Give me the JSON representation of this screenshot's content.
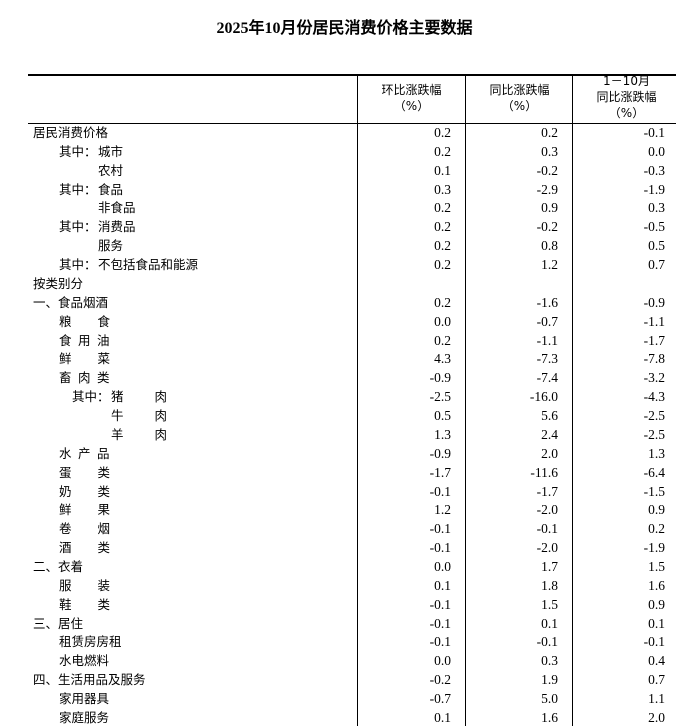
{
  "title": "2025年10月份居民消费价格主要数据",
  "headers": [
    {
      "lines": [
        "环比涨跌幅",
        "（%）"
      ]
    },
    {
      "lines": [
        "同比涨跌幅",
        "（%）"
      ]
    },
    {
      "lines": [
        "1－10月",
        "同比涨跌幅",
        "（%）"
      ]
    }
  ],
  "rows": [
    {
      "kind": "top",
      "label": "居民消费价格",
      "values": [
        "0.2",
        "0.2",
        "-0.1"
      ]
    },
    {
      "kind": "sub",
      "prefix": "其中：",
      "label": "城市",
      "values": [
        "0.2",
        "0.3",
        "0.0"
      ]
    },
    {
      "kind": "sub2",
      "label": "农村",
      "values": [
        "0.1",
        "-0.2",
        "-0.3"
      ]
    },
    {
      "kind": "sub",
      "prefix": "其中：",
      "label": "食品",
      "values": [
        "0.3",
        "-2.9",
        "-1.9"
      ]
    },
    {
      "kind": "sub2",
      "label": "非食品",
      "values": [
        "0.2",
        "0.9",
        "0.3"
      ]
    },
    {
      "kind": "sub",
      "prefix": "其中：",
      "label": "消费品",
      "values": [
        "0.2",
        "-0.2",
        "-0.5"
      ]
    },
    {
      "kind": "sub2",
      "label": "服务",
      "values": [
        "0.2",
        "0.8",
        "0.5"
      ]
    },
    {
      "kind": "sub",
      "prefix": "其中：",
      "label": "不包括食品和能源",
      "values": [
        "0.2",
        "1.2",
        "0.7"
      ]
    },
    {
      "kind": "top",
      "label": "按类别分",
      "values": []
    },
    {
      "kind": "top",
      "label": "一、食品烟酒",
      "values": [
        "0.2",
        "-1.6",
        "-0.9"
      ]
    },
    {
      "kind": "item",
      "label": "粮食",
      "values": [
        "0.0",
        "-0.7",
        "-1.1"
      ]
    },
    {
      "kind": "item",
      "label": "食用油",
      "values": [
        "0.2",
        "-1.1",
        "-1.7"
      ]
    },
    {
      "kind": "item",
      "label": "鲜菜",
      "values": [
        "4.3",
        "-7.3",
        "-7.8"
      ]
    },
    {
      "kind": "item",
      "label": "畜肉类",
      "values": [
        "-0.9",
        "-7.4",
        "-3.2"
      ]
    },
    {
      "kind": "meat",
      "prefix": "其中：",
      "label": "猪肉",
      "values": [
        "-2.5",
        "-16.0",
        "-4.3"
      ]
    },
    {
      "kind": "meat",
      "label": "牛肉",
      "values": [
        "0.5",
        "5.6",
        "-2.5"
      ]
    },
    {
      "kind": "meat",
      "label": "羊肉",
      "values": [
        "1.3",
        "2.4",
        "-2.5"
      ]
    },
    {
      "kind": "item",
      "label": "水产品",
      "values": [
        "-0.9",
        "2.0",
        "1.3"
      ]
    },
    {
      "kind": "item",
      "label": "蛋类",
      "values": [
        "-1.7",
        "-11.6",
        "-6.4"
      ]
    },
    {
      "kind": "item",
      "label": "奶类",
      "values": [
        "-0.1",
        "-1.7",
        "-1.5"
      ]
    },
    {
      "kind": "item",
      "label": "鲜果",
      "values": [
        "1.2",
        "-2.0",
        "0.9"
      ]
    },
    {
      "kind": "item",
      "label": "卷烟",
      "values": [
        "-0.1",
        "-0.1",
        "0.2"
      ]
    },
    {
      "kind": "item",
      "label": "酒类",
      "values": [
        "-0.1",
        "-2.0",
        "-1.9"
      ]
    },
    {
      "kind": "top",
      "label": "二、衣着",
      "values": [
        "0.0",
        "1.7",
        "1.5"
      ]
    },
    {
      "kind": "item",
      "label": "服装",
      "values": [
        "0.1",
        "1.8",
        "1.6"
      ]
    },
    {
      "kind": "item",
      "label": "鞋类",
      "values": [
        "-0.1",
        "1.5",
        "0.9"
      ]
    },
    {
      "kind": "top",
      "label": "三、居住",
      "values": [
        "-0.1",
        "0.1",
        "0.1"
      ]
    },
    {
      "kind": "plain",
      "label": "租赁房房租",
      "values": [
        "-0.1",
        "-0.1",
        "-0.1"
      ]
    },
    {
      "kind": "plain",
      "label": "水电燃料",
      "values": [
        "0.0",
        "0.3",
        "0.4"
      ]
    },
    {
      "kind": "top",
      "label": "四、生活用品及服务",
      "values": [
        "-0.2",
        "1.9",
        "0.7"
      ]
    },
    {
      "kind": "plain",
      "label": "家用器具",
      "values": [
        "-0.7",
        "5.0",
        "1.1"
      ]
    },
    {
      "kind": "plain",
      "label": "家庭服务",
      "values": [
        "0.1",
        "1.6",
        "2.0"
      ]
    }
  ]
}
